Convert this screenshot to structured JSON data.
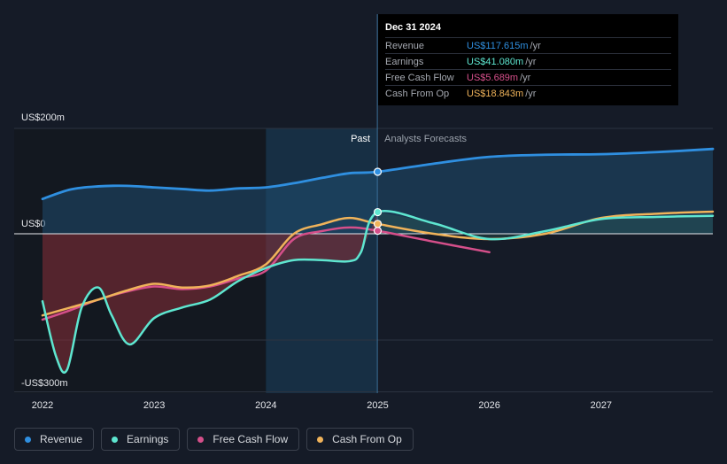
{
  "chart_data": {
    "type": "line",
    "x_ticks": [
      "2022",
      "2023",
      "2024",
      "2025",
      "2026",
      "2027"
    ],
    "y_ticks": [
      {
        "label": "US$200m",
        "value": 200
      },
      {
        "label": "US$0",
        "value": 0
      },
      {
        "label": "-US$300m",
        "value": -300
      }
    ],
    "ylim": [
      -300,
      200
    ],
    "divider_date": 2024.997,
    "past_label": "Past",
    "forecast_label": "Analysts Forecasts",
    "series": [
      {
        "name": "Revenue",
        "color": "#2f8fe0",
        "points": [
          [
            2022.0,
            66
          ],
          [
            2022.25,
            84
          ],
          [
            2022.5,
            90
          ],
          [
            2022.75,
            91
          ],
          [
            2023.0,
            88
          ],
          [
            2023.25,
            85
          ],
          [
            2023.5,
            82
          ],
          [
            2023.75,
            86
          ],
          [
            2024.0,
            88
          ],
          [
            2024.25,
            96
          ],
          [
            2024.5,
            106
          ],
          [
            2024.75,
            115
          ],
          [
            2025.0,
            117.6
          ]
        ],
        "forecast": [
          [
            2025.0,
            117.6
          ],
          [
            2025.5,
            133
          ],
          [
            2026.0,
            146
          ],
          [
            2026.5,
            150
          ],
          [
            2027.0,
            151
          ],
          [
            2027.5,
            155
          ],
          [
            2028.0,
            161
          ]
        ]
      },
      {
        "name": "Earnings",
        "color": "#5ee6d0",
        "points": [
          [
            2022.0,
            -128
          ],
          [
            2022.12,
            -232
          ],
          [
            2022.22,
            -258
          ],
          [
            2022.35,
            -140
          ],
          [
            2022.5,
            -102
          ],
          [
            2022.62,
            -155
          ],
          [
            2022.78,
            -210
          ],
          [
            2023.0,
            -160
          ],
          [
            2023.25,
            -140
          ],
          [
            2023.5,
            -125
          ],
          [
            2023.75,
            -90
          ],
          [
            2024.0,
            -65
          ],
          [
            2024.25,
            -50
          ],
          [
            2024.5,
            -50
          ],
          [
            2024.75,
            -52
          ],
          [
            2024.85,
            -35
          ],
          [
            2025.0,
            41.1
          ]
        ],
        "forecast": [
          [
            2025.0,
            41.1
          ],
          [
            2025.5,
            20
          ],
          [
            2026.0,
            -10
          ],
          [
            2026.5,
            5
          ],
          [
            2027.0,
            28
          ],
          [
            2027.5,
            32
          ],
          [
            2028.0,
            34
          ]
        ]
      },
      {
        "name": "Free Cash Flow",
        "color": "#d54f8a",
        "points": [
          [
            2022.0,
            -163
          ],
          [
            2022.25,
            -145
          ],
          [
            2022.5,
            -125
          ],
          [
            2022.75,
            -110
          ],
          [
            2023.0,
            -100
          ],
          [
            2023.25,
            -105
          ],
          [
            2023.5,
            -100
          ],
          [
            2023.75,
            -85
          ],
          [
            2024.0,
            -70
          ],
          [
            2024.25,
            -10
          ],
          [
            2024.5,
            5
          ],
          [
            2024.75,
            12
          ],
          [
            2025.0,
            5.7
          ]
        ],
        "forecast": [
          [
            2025.0,
            5.7
          ],
          [
            2025.5,
            -15
          ],
          [
            2026.0,
            -35
          ]
        ]
      },
      {
        "name": "Cash From Op",
        "color": "#f0b35a",
        "points": [
          [
            2022.0,
            -155
          ],
          [
            2022.25,
            -140
          ],
          [
            2022.5,
            -125
          ],
          [
            2022.75,
            -108
          ],
          [
            2023.0,
            -95
          ],
          [
            2023.25,
            -102
          ],
          [
            2023.5,
            -98
          ],
          [
            2023.75,
            -80
          ],
          [
            2024.0,
            -58
          ],
          [
            2024.25,
            0
          ],
          [
            2024.5,
            18
          ],
          [
            2024.75,
            30
          ],
          [
            2025.0,
            18.8
          ]
        ],
        "forecast": [
          [
            2025.0,
            18.8
          ],
          [
            2025.5,
            0
          ],
          [
            2026.0,
            -10
          ],
          [
            2026.5,
            0
          ],
          [
            2027.0,
            30
          ],
          [
            2027.5,
            38
          ],
          [
            2028.0,
            42
          ]
        ]
      }
    ],
    "tooltip": {
      "date": "Dec 31 2024",
      "rows": [
        {
          "label": "Revenue",
          "value": "US$117.615m",
          "unit": "/yr",
          "color": "#2f8fe0"
        },
        {
          "label": "Earnings",
          "value": "US$41.080m",
          "unit": "/yr",
          "color": "#5ee6d0"
        },
        {
          "label": "Free Cash Flow",
          "value": "US$5.689m",
          "unit": "/yr",
          "color": "#d54f8a"
        },
        {
          "label": "Cash From Op",
          "value": "US$18.843m",
          "unit": "/yr",
          "color": "#f0b35a"
        }
      ]
    },
    "legend": [
      {
        "label": "Revenue",
        "color": "#2f8fe0"
      },
      {
        "label": "Earnings",
        "color": "#5ee6d0"
      },
      {
        "label": "Free Cash Flow",
        "color": "#d54f8a"
      },
      {
        "label": "Cash From Op",
        "color": "#f0b35a"
      }
    ]
  }
}
